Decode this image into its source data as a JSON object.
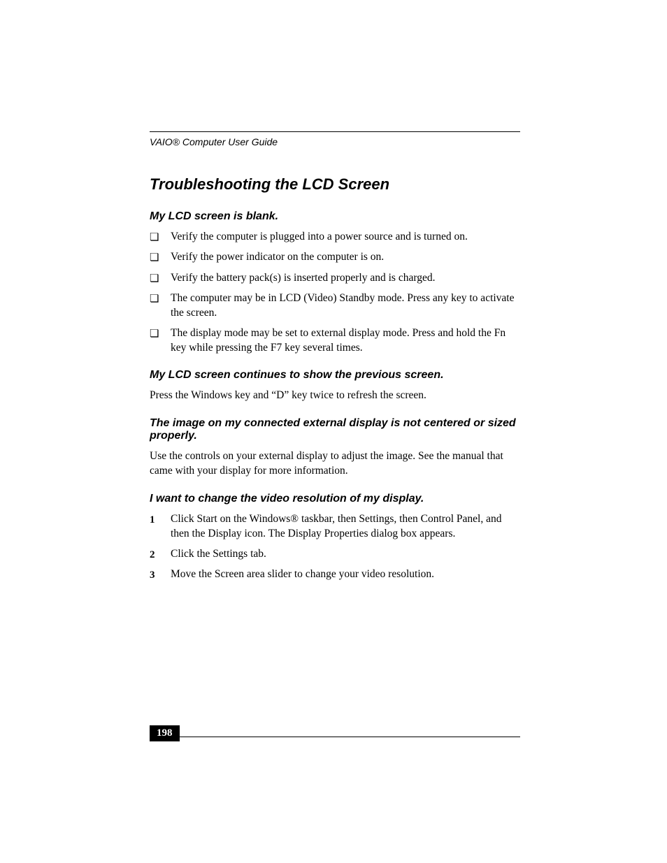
{
  "running_head": "VAIO® Computer User Guide",
  "title": "Troubleshooting the LCD Screen",
  "sections": [
    {
      "heading": "My LCD screen is blank.",
      "type": "checklist",
      "items": [
        "Verify the computer is plugged into a power source and is turned on.",
        "Verify the power indicator on the computer is on.",
        "Verify the battery pack(s) is inserted properly and is charged.",
        "The computer may be in LCD (Video) Standby mode. Press any key to activate the screen.",
        "The display mode may be set to external display mode. Press and hold the Fn key while pressing the F7 key several times."
      ]
    },
    {
      "heading": "My LCD screen continues to show the previous screen.",
      "type": "paragraph",
      "text": "Press the Windows key and “D” key twice to refresh the screen."
    },
    {
      "heading": "The image on my connected external display is not centered or sized properly.",
      "type": "paragraph",
      "text": "Use the controls on your external display to adjust the image. See the manual that came with your display for more information."
    },
    {
      "heading": "I want to change the video resolution of my display.",
      "type": "numbered",
      "items": [
        "Click Start on the Windows® taskbar, then Settings, then Control Panel, and then the Display icon. The Display Properties dialog box appears.",
        "Click the Settings tab.",
        "Move the Screen area slider to change your video resolution."
      ]
    }
  ],
  "bullet_glyph": "❏",
  "page_number": "198",
  "colors": {
    "text": "#000000",
    "background": "#ffffff",
    "page_num_bg": "#000000",
    "page_num_fg": "#ffffff"
  }
}
